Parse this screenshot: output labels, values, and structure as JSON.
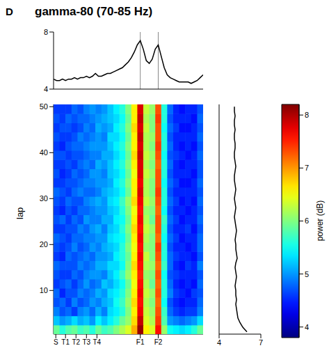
{
  "panel": "D",
  "title": "gamma-80 (70-85 Hz)",
  "chart_data": [
    {
      "type": "line",
      "x": [
        0,
        2,
        4,
        6,
        8,
        10,
        12,
        14,
        16,
        18,
        20,
        22,
        24,
        26,
        28,
        30,
        32,
        34,
        36,
        38,
        40,
        42,
        44,
        46,
        48,
        50,
        52,
        54,
        56,
        58,
        60,
        62,
        64,
        66,
        68,
        70,
        72,
        74,
        76,
        78,
        80,
        82,
        84,
        86,
        88,
        90,
        92,
        94,
        96,
        98,
        100
      ],
      "values": [
        4.7,
        4.6,
        4.6,
        4.7,
        4.6,
        4.7,
        4.7,
        4.8,
        4.7,
        4.8,
        4.8,
        4.9,
        4.8,
        4.9,
        5.1,
        4.9,
        4.9,
        5.0,
        5.1,
        5.1,
        5.2,
        5.3,
        5.4,
        5.5,
        5.7,
        5.9,
        6.2,
        6.6,
        7.1,
        7.4,
        6.8,
        6.0,
        5.8,
        6.1,
        6.8,
        7.1,
        6.3,
        5.5,
        5.0,
        4.8,
        4.7,
        4.6,
        4.5,
        4.5,
        4.5,
        4.5,
        4.4,
        4.5,
        4.6,
        4.8,
        5.0
      ],
      "xlim": [
        0,
        100
      ],
      "ylim": [
        4,
        8
      ],
      "yticks": [
        4,
        8
      ],
      "reference_lines": [
        58,
        70
      ],
      "tick_labels": "y",
      "color": "#000000"
    },
    {
      "type": "heatmap",
      "y_label": "lap",
      "x_bins": [
        0,
        4,
        8,
        12,
        16,
        20,
        24,
        28,
        32,
        36,
        40,
        44,
        48,
        52,
        56,
        60,
        64,
        68,
        72,
        76,
        80,
        84,
        88,
        92,
        96,
        100
      ],
      "lap_bins": [
        0.5,
        2.5,
        4.5,
        6.5,
        8.5,
        10.5,
        12.5,
        14.5,
        16.5,
        18.5,
        20.5,
        22.5,
        24.5,
        26.5,
        28.5,
        30.5,
        32.5,
        34.5,
        36.5,
        38.5,
        40.5,
        42.5,
        44.5,
        46.5,
        48.5,
        50.5
      ],
      "cells": [
        [
          5.9,
          5.6,
          5.8,
          5.9,
          5.7,
          5.8,
          5.6,
          5.9,
          5.7,
          5.8,
          6.0,
          6.2,
          6.4,
          6.9,
          8.1,
          6.6,
          6.4,
          7.6,
          6.1,
          5.5,
          5.4,
          5.3,
          5.4,
          5.6,
          5.9
        ],
        [
          5.2,
          5.0,
          5.1,
          5.3,
          5.1,
          5.2,
          5.0,
          5.4,
          5.2,
          5.4,
          5.6,
          5.9,
          6.1,
          6.7,
          7.9,
          6.4,
          6.2,
          7.4,
          5.8,
          5.0,
          4.9,
          4.8,
          4.9,
          5.0,
          5.3
        ],
        [
          4.9,
          4.7,
          4.8,
          4.6,
          4.9,
          5.0,
          4.8,
          5.1,
          4.9,
          5.3,
          5.4,
          5.6,
          6.0,
          6.6,
          7.7,
          6.3,
          6.1,
          7.3,
          5.7,
          4.8,
          4.6,
          4.5,
          4.6,
          4.6,
          4.9
        ],
        [
          4.7,
          4.8,
          4.6,
          4.9,
          4.7,
          4.8,
          5.0,
          4.9,
          5.1,
          5.2,
          5.5,
          5.7,
          6.1,
          6.7,
          7.6,
          6.2,
          6.0,
          7.2,
          5.5,
          4.7,
          4.5,
          4.4,
          4.5,
          4.5,
          4.8
        ],
        [
          4.8,
          4.5,
          4.7,
          4.7,
          4.9,
          4.8,
          4.9,
          5.1,
          5.0,
          5.3,
          5.4,
          5.6,
          6.0,
          6.6,
          7.7,
          6.3,
          6.1,
          7.3,
          5.6,
          4.9,
          4.6,
          4.5,
          4.4,
          4.6,
          4.7
        ],
        [
          4.6,
          4.7,
          4.8,
          4.6,
          4.8,
          5.0,
          4.8,
          4.9,
          5.2,
          5.1,
          5.3,
          5.5,
          5.9,
          6.5,
          7.6,
          6.2,
          5.9,
          7.2,
          5.6,
          4.8,
          4.5,
          4.4,
          4.5,
          4.4,
          4.8
        ],
        [
          4.7,
          4.6,
          4.6,
          4.8,
          4.7,
          4.9,
          5.0,
          5.0,
          4.9,
          5.2,
          5.4,
          5.7,
          6.1,
          6.6,
          7.5,
          6.1,
          6.0,
          7.3,
          5.5,
          4.7,
          4.6,
          4.5,
          4.5,
          4.5,
          4.7
        ],
        [
          4.8,
          4.7,
          4.7,
          4.7,
          4.9,
          4.8,
          4.9,
          5.1,
          5.1,
          5.3,
          5.3,
          5.5,
          6.0,
          6.7,
          7.6,
          6.2,
          6.1,
          7.2,
          5.7,
          4.8,
          4.5,
          4.4,
          4.6,
          4.5,
          4.9
        ],
        [
          4.6,
          4.5,
          4.8,
          4.7,
          4.8,
          4.9,
          4.8,
          5.0,
          5.0,
          5.1,
          5.4,
          5.6,
          5.9,
          6.6,
          7.7,
          6.3,
          6.0,
          7.3,
          5.6,
          4.8,
          4.6,
          4.5,
          4.5,
          4.4,
          4.7
        ],
        [
          4.7,
          4.6,
          4.7,
          4.9,
          4.7,
          4.8,
          5.0,
          4.9,
          5.1,
          5.2,
          5.3,
          5.6,
          6.0,
          6.5,
          7.6,
          6.1,
          6.0,
          7.4,
          5.6,
          4.7,
          4.5,
          4.5,
          4.4,
          4.5,
          4.8
        ],
        [
          4.8,
          4.7,
          4.6,
          4.8,
          4.8,
          4.9,
          4.9,
          5.0,
          5.0,
          5.3,
          5.4,
          5.5,
          5.9,
          6.6,
          7.7,
          6.2,
          6.0,
          7.2,
          5.5,
          4.8,
          4.6,
          4.4,
          4.5,
          4.5,
          4.8
        ],
        [
          4.6,
          4.6,
          4.7,
          4.7,
          4.9,
          4.8,
          5.0,
          5.1,
          4.9,
          5.2,
          5.3,
          5.6,
          6.0,
          6.7,
          7.6,
          6.3,
          6.1,
          7.3,
          5.6,
          4.7,
          4.5,
          4.5,
          4.6,
          4.4,
          4.7
        ],
        [
          4.7,
          4.8,
          4.6,
          4.8,
          4.7,
          5.0,
          4.9,
          4.9,
          5.1,
          5.1,
          5.4,
          5.5,
          5.9,
          6.6,
          7.7,
          6.2,
          5.9,
          7.3,
          5.7,
          4.8,
          4.6,
          4.4,
          4.5,
          4.5,
          4.8
        ],
        [
          4.6,
          4.5,
          4.7,
          4.6,
          4.8,
          4.8,
          4.9,
          5.0,
          5.0,
          5.2,
          5.3,
          5.6,
          6.0,
          6.5,
          7.6,
          6.1,
          6.0,
          7.2,
          5.5,
          4.7,
          4.5,
          4.5,
          4.4,
          4.5,
          4.7
        ],
        [
          4.7,
          4.6,
          4.8,
          4.7,
          4.7,
          4.9,
          5.0,
          5.1,
          5.0,
          5.3,
          5.4,
          5.7,
          6.1,
          6.7,
          7.7,
          6.3,
          6.1,
          7.3,
          5.6,
          4.8,
          4.6,
          4.4,
          4.5,
          4.4,
          4.8
        ],
        [
          4.8,
          4.7,
          4.6,
          4.8,
          4.9,
          4.8,
          4.8,
          4.9,
          5.1,
          5.2,
          5.3,
          5.5,
          5.9,
          6.6,
          7.8,
          6.2,
          6.0,
          7.4,
          5.6,
          4.7,
          4.5,
          4.5,
          4.5,
          4.5,
          4.7
        ],
        [
          4.6,
          4.6,
          4.7,
          4.7,
          4.8,
          4.9,
          4.9,
          5.0,
          5.0,
          5.1,
          5.4,
          5.6,
          6.0,
          6.6,
          7.7,
          6.2,
          6.0,
          7.3,
          5.5,
          4.8,
          4.6,
          4.4,
          4.4,
          4.5,
          4.8
        ],
        [
          4.7,
          4.5,
          4.6,
          4.8,
          4.7,
          4.8,
          5.0,
          5.0,
          4.9,
          5.2,
          5.3,
          5.5,
          5.9,
          6.5,
          7.8,
          6.3,
          6.1,
          7.3,
          5.6,
          4.7,
          4.5,
          4.5,
          4.5,
          4.4,
          4.7
        ],
        [
          4.6,
          4.6,
          4.7,
          4.6,
          4.8,
          4.9,
          4.8,
          5.1,
          5.0,
          5.2,
          5.4,
          5.6,
          6.0,
          6.6,
          7.8,
          6.2,
          6.0,
          7.2,
          5.6,
          4.8,
          4.5,
          4.4,
          4.5,
          4.5,
          4.7
        ],
        [
          4.7,
          4.7,
          4.6,
          4.7,
          4.7,
          4.8,
          4.9,
          4.9,
          5.1,
          5.1,
          5.3,
          5.5,
          5.9,
          6.7,
          7.9,
          6.3,
          6.1,
          7.3,
          5.5,
          4.7,
          4.6,
          4.5,
          4.4,
          4.5,
          4.8
        ],
        [
          4.6,
          4.5,
          4.7,
          4.8,
          4.8,
          4.9,
          5.0,
          5.0,
          5.0,
          5.2,
          5.4,
          5.6,
          6.0,
          6.6,
          7.8,
          6.2,
          6.0,
          7.4,
          5.6,
          4.8,
          4.5,
          4.4,
          4.5,
          4.4,
          4.7
        ],
        [
          4.7,
          4.6,
          4.6,
          4.7,
          4.9,
          4.8,
          4.9,
          5.0,
          4.9,
          5.3,
          5.3,
          5.5,
          5.9,
          6.6,
          7.9,
          6.2,
          6.1,
          7.3,
          5.6,
          4.7,
          4.5,
          4.5,
          4.5,
          4.5,
          4.8
        ],
        [
          4.6,
          4.7,
          4.7,
          4.6,
          4.7,
          4.9,
          4.8,
          5.1,
          5.0,
          5.1,
          5.4,
          5.6,
          6.0,
          6.7,
          7.8,
          6.3,
          6.0,
          7.3,
          5.5,
          4.8,
          4.6,
          4.4,
          4.4,
          4.5,
          4.7
        ],
        [
          4.7,
          4.6,
          4.8,
          4.7,
          4.8,
          4.8,
          4.9,
          5.0,
          5.1,
          5.2,
          5.3,
          5.5,
          5.9,
          6.6,
          7.9,
          6.2,
          6.0,
          7.4,
          5.6,
          4.7,
          4.5,
          4.5,
          4.5,
          4.4,
          4.8
        ],
        [
          4.6,
          4.6,
          4.6,
          4.8,
          4.7,
          4.9,
          5.0,
          4.9,
          5.0,
          5.2,
          5.4,
          5.6,
          6.0,
          6.6,
          7.8,
          6.3,
          6.1,
          7.3,
          5.6,
          4.8,
          4.5,
          4.4,
          4.5,
          4.5,
          4.7
        ]
      ],
      "xlim": [
        0,
        100
      ],
      "xticks": [
        {
          "value": 1.5,
          "label": "S"
        },
        {
          "value": 8,
          "label": "T1"
        },
        {
          "value": 15,
          "label": "T2"
        },
        {
          "value": 22,
          "label": "T3"
        },
        {
          "value": 29,
          "label": "T4"
        },
        {
          "value": 58,
          "label": "F1"
        },
        {
          "value": 70,
          "label": "F2"
        }
      ],
      "ylim": [
        0.5,
        50.5
      ],
      "yticks": [
        10,
        20,
        30,
        40,
        50
      ],
      "colorbar_range": [
        3.8,
        8.2
      ],
      "colorbar_ticks": [
        4,
        5,
        6,
        7,
        8
      ],
      "colorbar_label": "power (dB)"
    },
    {
      "type": "line",
      "orientation": "horizontal",
      "laps": [
        1,
        2,
        3,
        4,
        5,
        6,
        7,
        8,
        9,
        10,
        11,
        12,
        13,
        14,
        15,
        16,
        17,
        18,
        19,
        20,
        21,
        22,
        23,
        24,
        25,
        26,
        27,
        28,
        29,
        30,
        31,
        32,
        33,
        34,
        35,
        36,
        37,
        38,
        39,
        40,
        41,
        42,
        43,
        44,
        45,
        46,
        47,
        48,
        49,
        50
      ],
      "values": [
        6.0,
        5.7,
        5.5,
        5.35,
        5.3,
        5.25,
        5.2,
        5.25,
        5.2,
        5.2,
        5.15,
        5.2,
        5.25,
        5.2,
        5.15,
        5.2,
        5.3,
        5.25,
        5.2,
        5.2,
        5.15,
        5.2,
        5.25,
        5.2,
        5.15,
        5.1,
        5.15,
        5.2,
        5.15,
        5.1,
        5.15,
        5.2,
        5.15,
        5.1,
        5.1,
        5.15,
        5.2,
        5.15,
        5.1,
        5.1,
        5.15,
        5.15,
        5.1,
        5.1,
        5.15,
        5.1,
        5.1,
        5.15,
        5.1,
        5.1
      ],
      "xlim": [
        4,
        7
      ],
      "xticks": [
        4,
        7
      ],
      "ylim": [
        0.5,
        50.5
      ],
      "tick_labels": "x",
      "color": "#000000"
    }
  ]
}
